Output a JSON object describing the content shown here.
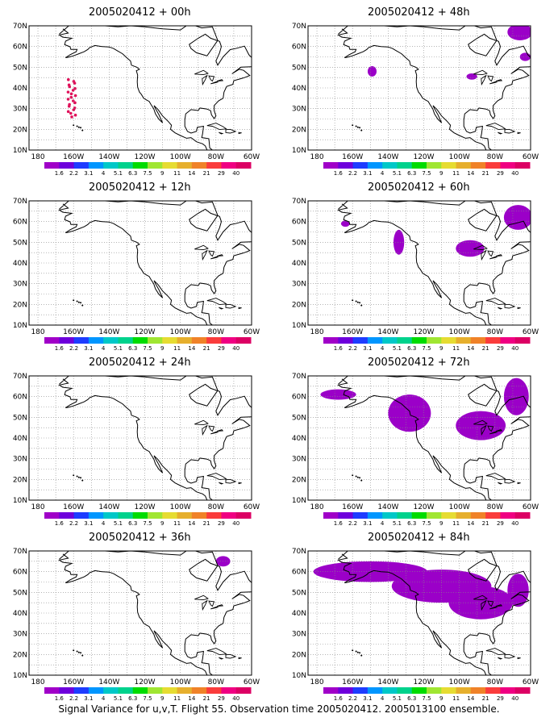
{
  "panels": [
    {
      "title": "2005020412 + 00h",
      "blobs": [
        {
          "lon": -161,
          "lat": 35,
          "rlon": 3,
          "rlat": 9,
          "kind": "dots"
        }
      ]
    },
    {
      "title": "2005020412 + 48h",
      "blobs": [
        {
          "lon": -149,
          "lat": 48,
          "rlon": 2.5,
          "rlat": 2.5,
          "kind": "fill"
        },
        {
          "lon": -93,
          "lat": 45.5,
          "rlon": 3,
          "rlat": 1.5,
          "kind": "fill"
        },
        {
          "lon": -66,
          "lat": 67,
          "rlon": 7,
          "rlat": 4,
          "kind": "fill"
        },
        {
          "lon": -63,
          "lat": 55,
          "rlon": 3,
          "rlat": 2,
          "kind": "fill"
        }
      ]
    },
    {
      "title": "2005020412 + 12h",
      "blobs": []
    },
    {
      "title": "2005020412 + 60h",
      "blobs": [
        {
          "lon": -164,
          "lat": 59,
          "rlon": 2.5,
          "rlat": 1.5,
          "kind": "fill"
        },
        {
          "lon": -134,
          "lat": 50,
          "rlon": 3,
          "rlat": 6,
          "kind": "fill"
        },
        {
          "lon": -94,
          "lat": 47,
          "rlon": 8,
          "rlat": 4,
          "kind": "fill"
        },
        {
          "lon": -67,
          "lat": 62,
          "rlon": 8,
          "rlat": 6,
          "kind": "fill"
        }
      ]
    },
    {
      "title": "2005020412 + 24h",
      "blobs": []
    },
    {
      "title": "2005020412 + 72h",
      "blobs": [
        {
          "lon": -168,
          "lat": 61,
          "rlon": 10,
          "rlat": 2.5,
          "kind": "fill"
        },
        {
          "lon": -128,
          "lat": 52,
          "rlon": 12,
          "rlat": 9,
          "kind": "fill"
        },
        {
          "lon": -88,
          "lat": 46,
          "rlon": 14,
          "rlat": 7,
          "kind": "fill"
        },
        {
          "lon": -68,
          "lat": 60,
          "rlon": 7,
          "rlat": 9,
          "kind": "fill"
        }
      ]
    },
    {
      "title": "2005020412 + 36h",
      "blobs": [
        {
          "lon": -76,
          "lat": 65,
          "rlon": 4,
          "rlat": 2.5,
          "kind": "fill"
        }
      ]
    },
    {
      "title": "2005020412 + 84h",
      "blobs": [
        {
          "lon": -150,
          "lat": 60,
          "rlon": 32,
          "rlat": 5,
          "kind": "fill"
        },
        {
          "lon": -110,
          "lat": 53,
          "rlon": 28,
          "rlat": 8,
          "kind": "fill"
        },
        {
          "lon": -88,
          "lat": 45,
          "rlon": 18,
          "rlat": 8,
          "kind": "fill"
        },
        {
          "lon": -67,
          "lat": 51,
          "rlon": 6,
          "rlat": 8,
          "kind": "fill"
        }
      ]
    }
  ],
  "map": {
    "lon_range": [
      -185,
      -60
    ],
    "lat_range": [
      10,
      70
    ],
    "lon_ticks": [
      "180",
      "160W",
      "140W",
      "120W",
      "100W",
      "80W",
      "60W"
    ],
    "lat_ticks": [
      "10N",
      "20N",
      "30N",
      "40N",
      "50N",
      "60N",
      "70N"
    ],
    "grid": "dotted"
  },
  "colorbar": {
    "labels": [
      "1.6",
      "2.2",
      "3.1",
      "4",
      "5.1",
      "6.3",
      "7.5",
      "9",
      "11",
      "14",
      "21",
      "29",
      "40"
    ],
    "colors": [
      "#a000c8",
      "#6e00dc",
      "#1e3cff",
      "#0096ff",
      "#00c8c8",
      "#00d28c",
      "#00dc00",
      "#a0e632",
      "#e6dc32",
      "#e6af2d",
      "#f08228",
      "#fa3c3c",
      "#f00082",
      "#dc0064"
    ]
  },
  "field_color": "#9b00c8",
  "dots_color": "#e0105a",
  "footer": "Signal Variance for u,v,T. Flight 55. Observation time 2005020412. 2005013100 ensemble."
}
